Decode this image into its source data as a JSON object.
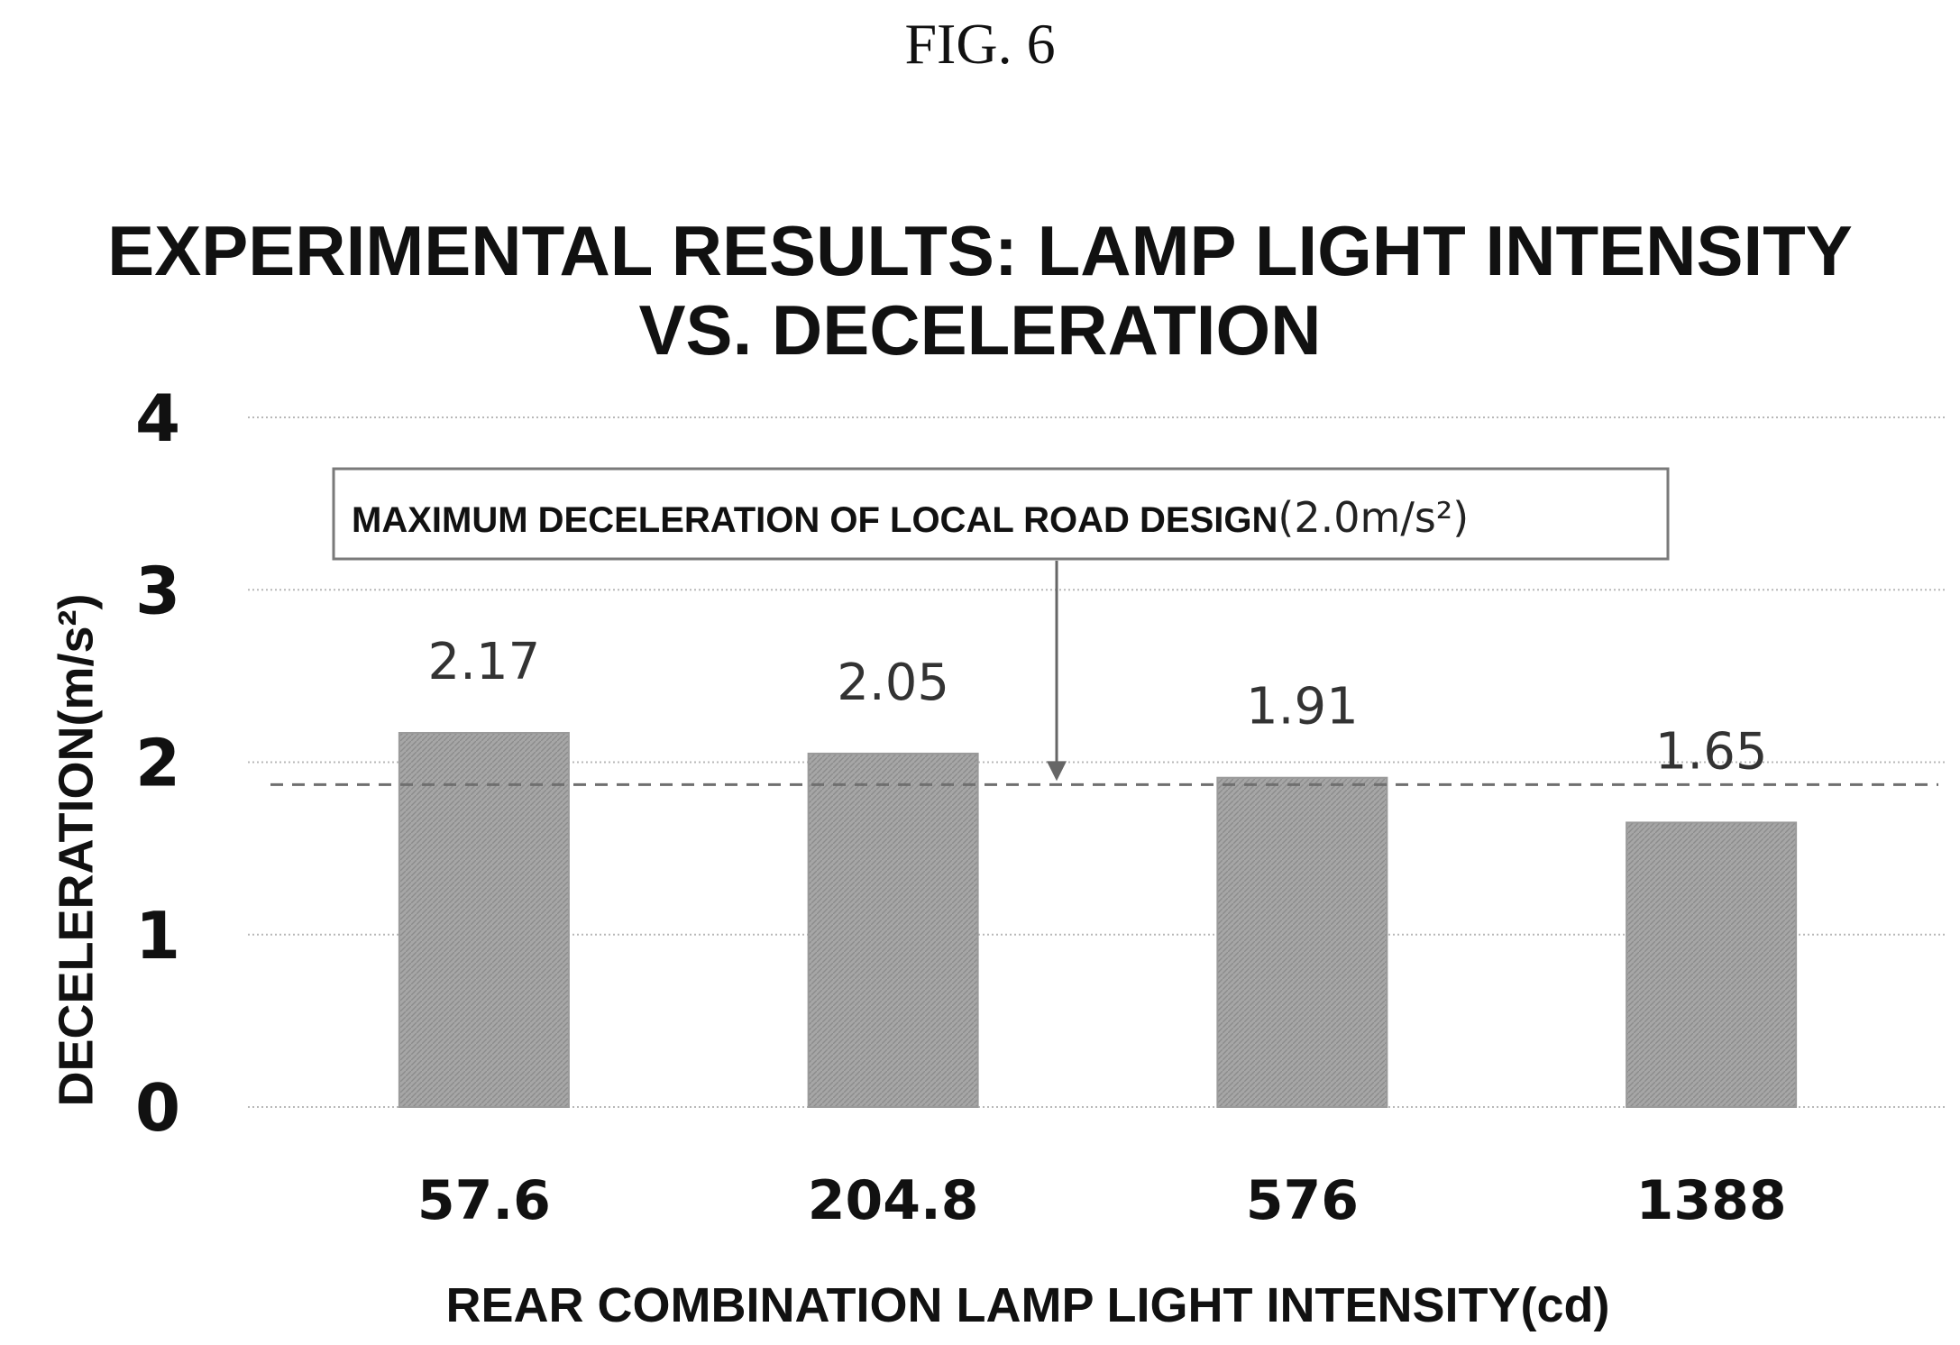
{
  "figure_label": "FIG. 6",
  "chart_data": {
    "type": "bar",
    "title_line1": "EXPERIMENTAL RESULTS: LAMP LIGHT INTENSITY",
    "title_line2": "VS. DECELERATION",
    "xlabel": "REAR COMBINATION LAMP LIGHT INTENSITY(cd)",
    "ylabel": "DECELERATION(m/s²)",
    "categories": [
      "57.6",
      "204.8",
      "576",
      "1388"
    ],
    "values": [
      2.17,
      2.05,
      1.91,
      1.65
    ],
    "value_labels": [
      "2.17",
      "2.05",
      "1.91",
      "1.65"
    ],
    "ylim": [
      0,
      4
    ],
    "yticks": [
      "0",
      "1",
      "2",
      "3",
      "4"
    ],
    "grid": true,
    "reference_line": {
      "value": 1.87,
      "style": "dashed",
      "annotation": "MAXIMUM DECELERATION OF LOCAL ROAD DESIGN",
      "annotation_unit": "(2.0m/s²)"
    },
    "bar_color": "#9e9e9e"
  }
}
